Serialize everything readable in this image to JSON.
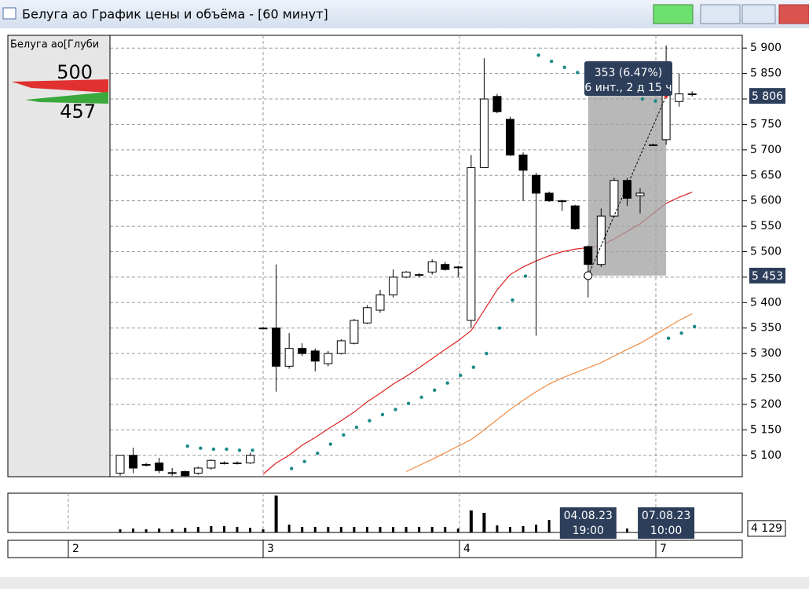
{
  "window": {
    "title": "Белуга ао График цены и объёма - [60 минут]"
  },
  "depth": {
    "label": "Белуга ао[Глуби",
    "ask": 500,
    "bid": 457
  },
  "chart_data": {
    "type": "candlestick",
    "candles": [
      [
        5065,
        5100,
        5060,
        5100
      ],
      [
        5100,
        5115,
        5065,
        5075
      ],
      [
        5082,
        5085,
        5078,
        5082
      ],
      [
        5085,
        5095,
        5065,
        5070
      ],
      [
        5066,
        5075,
        5060,
        5066
      ],
      [
        5068,
        5070,
        5058,
        5060
      ],
      [
        5065,
        5078,
        5062,
        5075
      ],
      [
        5075,
        5092,
        5072,
        5090
      ],
      [
        5085,
        5088,
        5082,
        5085
      ],
      [
        5085,
        5088,
        5082,
        5085
      ],
      [
        5085,
        5105,
        5083,
        5100
      ],
      [
        5350,
        5352,
        5348,
        5350
      ],
      [
        5350,
        5475,
        5225,
        5275
      ],
      [
        5275,
        5340,
        5270,
        5310
      ],
      [
        5310,
        5320,
        5295,
        5300
      ],
      [
        5305,
        5310,
        5265,
        5285
      ],
      [
        5280,
        5305,
        5275,
        5300
      ],
      [
        5300,
        5328,
        5298,
        5325
      ],
      [
        5320,
        5368,
        5318,
        5365
      ],
      [
        5360,
        5395,
        5358,
        5390
      ],
      [
        5385,
        5425,
        5380,
        5415
      ],
      [
        5415,
        5465,
        5410,
        5450
      ],
      [
        5450,
        5462,
        5448,
        5460
      ],
      [
        5455,
        5458,
        5450,
        5455
      ],
      [
        5460,
        5485,
        5455,
        5480
      ],
      [
        5475,
        5480,
        5463,
        5465
      ],
      [
        5470,
        5472,
        5450,
        5470
      ],
      [
        5365,
        5690,
        5350,
        5665
      ],
      [
        5665,
        5880,
        5665,
        5800
      ],
      [
        5805,
        5810,
        5772,
        5775
      ],
      [
        5760,
        5765,
        5688,
        5690
      ],
      [
        5690,
        5695,
        5600,
        5660
      ],
      [
        5650,
        5655,
        5335,
        5615
      ],
      [
        5615,
        5618,
        5598,
        5600
      ],
      [
        5600,
        5602,
        5580,
        5600
      ],
      [
        5590,
        5592,
        5543,
        5545
      ],
      [
        5510,
        5512,
        5410,
        5475
      ],
      [
        5475,
        5585,
        5470,
        5570
      ],
      [
        5570,
        5645,
        5568,
        5640
      ],
      [
        5640,
        5645,
        5590,
        5605
      ],
      [
        5610,
        5625,
        5575,
        5615
      ],
      [
        5710,
        5712,
        5708,
        5710
      ],
      [
        5720,
        5905,
        5710,
        5810
      ],
      [
        5795,
        5850,
        5785,
        5810
      ],
      [
        5810,
        5815,
        5805,
        5810
      ]
    ],
    "sar": [
      null,
      null,
      null,
      null,
      null,
      5118,
      5114,
      5112,
      5112,
      5110,
      5110,
      null,
      null,
      5074,
      5088,
      5104,
      5122,
      5140,
      5155,
      5168,
      5180,
      5190,
      5202,
      5214,
      5228,
      5242,
      5257,
      5273,
      5300,
      5350,
      5405,
      5452,
      5886,
      5874,
      5862,
      5852,
      null,
      null,
      null,
      null,
      5800,
      5796,
      5330,
      5340,
      5353
    ],
    "ma_fast": [
      null,
      null,
      null,
      null,
      null,
      null,
      null,
      null,
      null,
      null,
      null,
      5063,
      5085,
      5100,
      5120,
      5135,
      5152,
      5168,
      5185,
      5205,
      5222,
      5240,
      5255,
      5272,
      5290,
      5308,
      5325,
      5345,
      5385,
      5425,
      5455,
      5470,
      5482,
      5492,
      5500,
      5505,
      5508,
      5512,
      5525,
      5540,
      5555,
      5575,
      5595,
      5607,
      5617
    ],
    "ma_slow": [
      null,
      null,
      null,
      null,
      null,
      null,
      null,
      null,
      null,
      null,
      null,
      null,
      null,
      null,
      null,
      null,
      null,
      null,
      null,
      null,
      null,
      null,
      5068,
      5080,
      5092,
      5105,
      5118,
      5131,
      5150,
      5170,
      5190,
      5208,
      5225,
      5240,
      5252,
      5262,
      5272,
      5282,
      5295,
      5308,
      5320,
      5335,
      5350,
      5365,
      5378
    ],
    "volumes": [
      4000,
      5000,
      4000,
      5000,
      4000,
      6000,
      7000,
      8000,
      8000,
      7000,
      6000,
      4000,
      47000,
      10000,
      7000,
      7000,
      7000,
      7000,
      7000,
      7000,
      7000,
      7000,
      7000,
      7000,
      7000,
      7000,
      5000,
      28000,
      25000,
      9000,
      7000,
      8000,
      10000,
      16000,
      7000,
      6000,
      5000,
      9000,
      6000,
      5000,
      5000,
      4000,
      5000,
      5000,
      4129
    ],
    "ylim": [
      5058,
      5925
    ],
    "yticks": [
      {
        "value": 5100,
        "label": "5 100"
      },
      {
        "value": 5150,
        "label": "5 150"
      },
      {
        "value": 5200,
        "label": "5 200"
      },
      {
        "value": 5250,
        "label": "5 250"
      },
      {
        "value": 5300,
        "label": "5 300"
      },
      {
        "value": 5350,
        "label": "5 350"
      },
      {
        "value": 5400,
        "label": "5 400"
      },
      {
        "value": 5450,
        "label": "5 450"
      },
      {
        "value": 5500,
        "label": "5 500"
      },
      {
        "value": 5550,
        "label": "5 550"
      },
      {
        "value": 5600,
        "label": "5 600"
      },
      {
        "value": 5650,
        "label": "5 650"
      },
      {
        "value": 5700,
        "label": "5 700"
      },
      {
        "value": 5750,
        "label": "5 750"
      },
      {
        "value": 5800,
        "label": "5 800"
      },
      {
        "value": 5850,
        "label": "5 850"
      },
      {
        "value": 5900,
        "label": "5 900"
      }
    ],
    "vlim": [
      0,
      50000
    ],
    "vticks": [
      {
        "value": 4129,
        "label": "4 129"
      }
    ],
    "price_labels": [
      {
        "value": 5806,
        "label": "5 806"
      },
      {
        "value": 5453,
        "label": "5 453"
      }
    ],
    "measure": {
      "from": 5453,
      "to": 5806,
      "change": "353 (6.47%)",
      "span": "6 инт., 2 д 15 ч"
    },
    "date_labels": [
      [
        "04.08.23",
        "19:00"
      ],
      [
        "07.08.23",
        "10:00"
      ]
    ],
    "day_labels": [
      "2",
      "3",
      "4",
      "7"
    ],
    "colors": {
      "ma_fast": "#e02020",
      "ma_slow": "#f08a40",
      "sar": "#1a8a8a"
    }
  }
}
